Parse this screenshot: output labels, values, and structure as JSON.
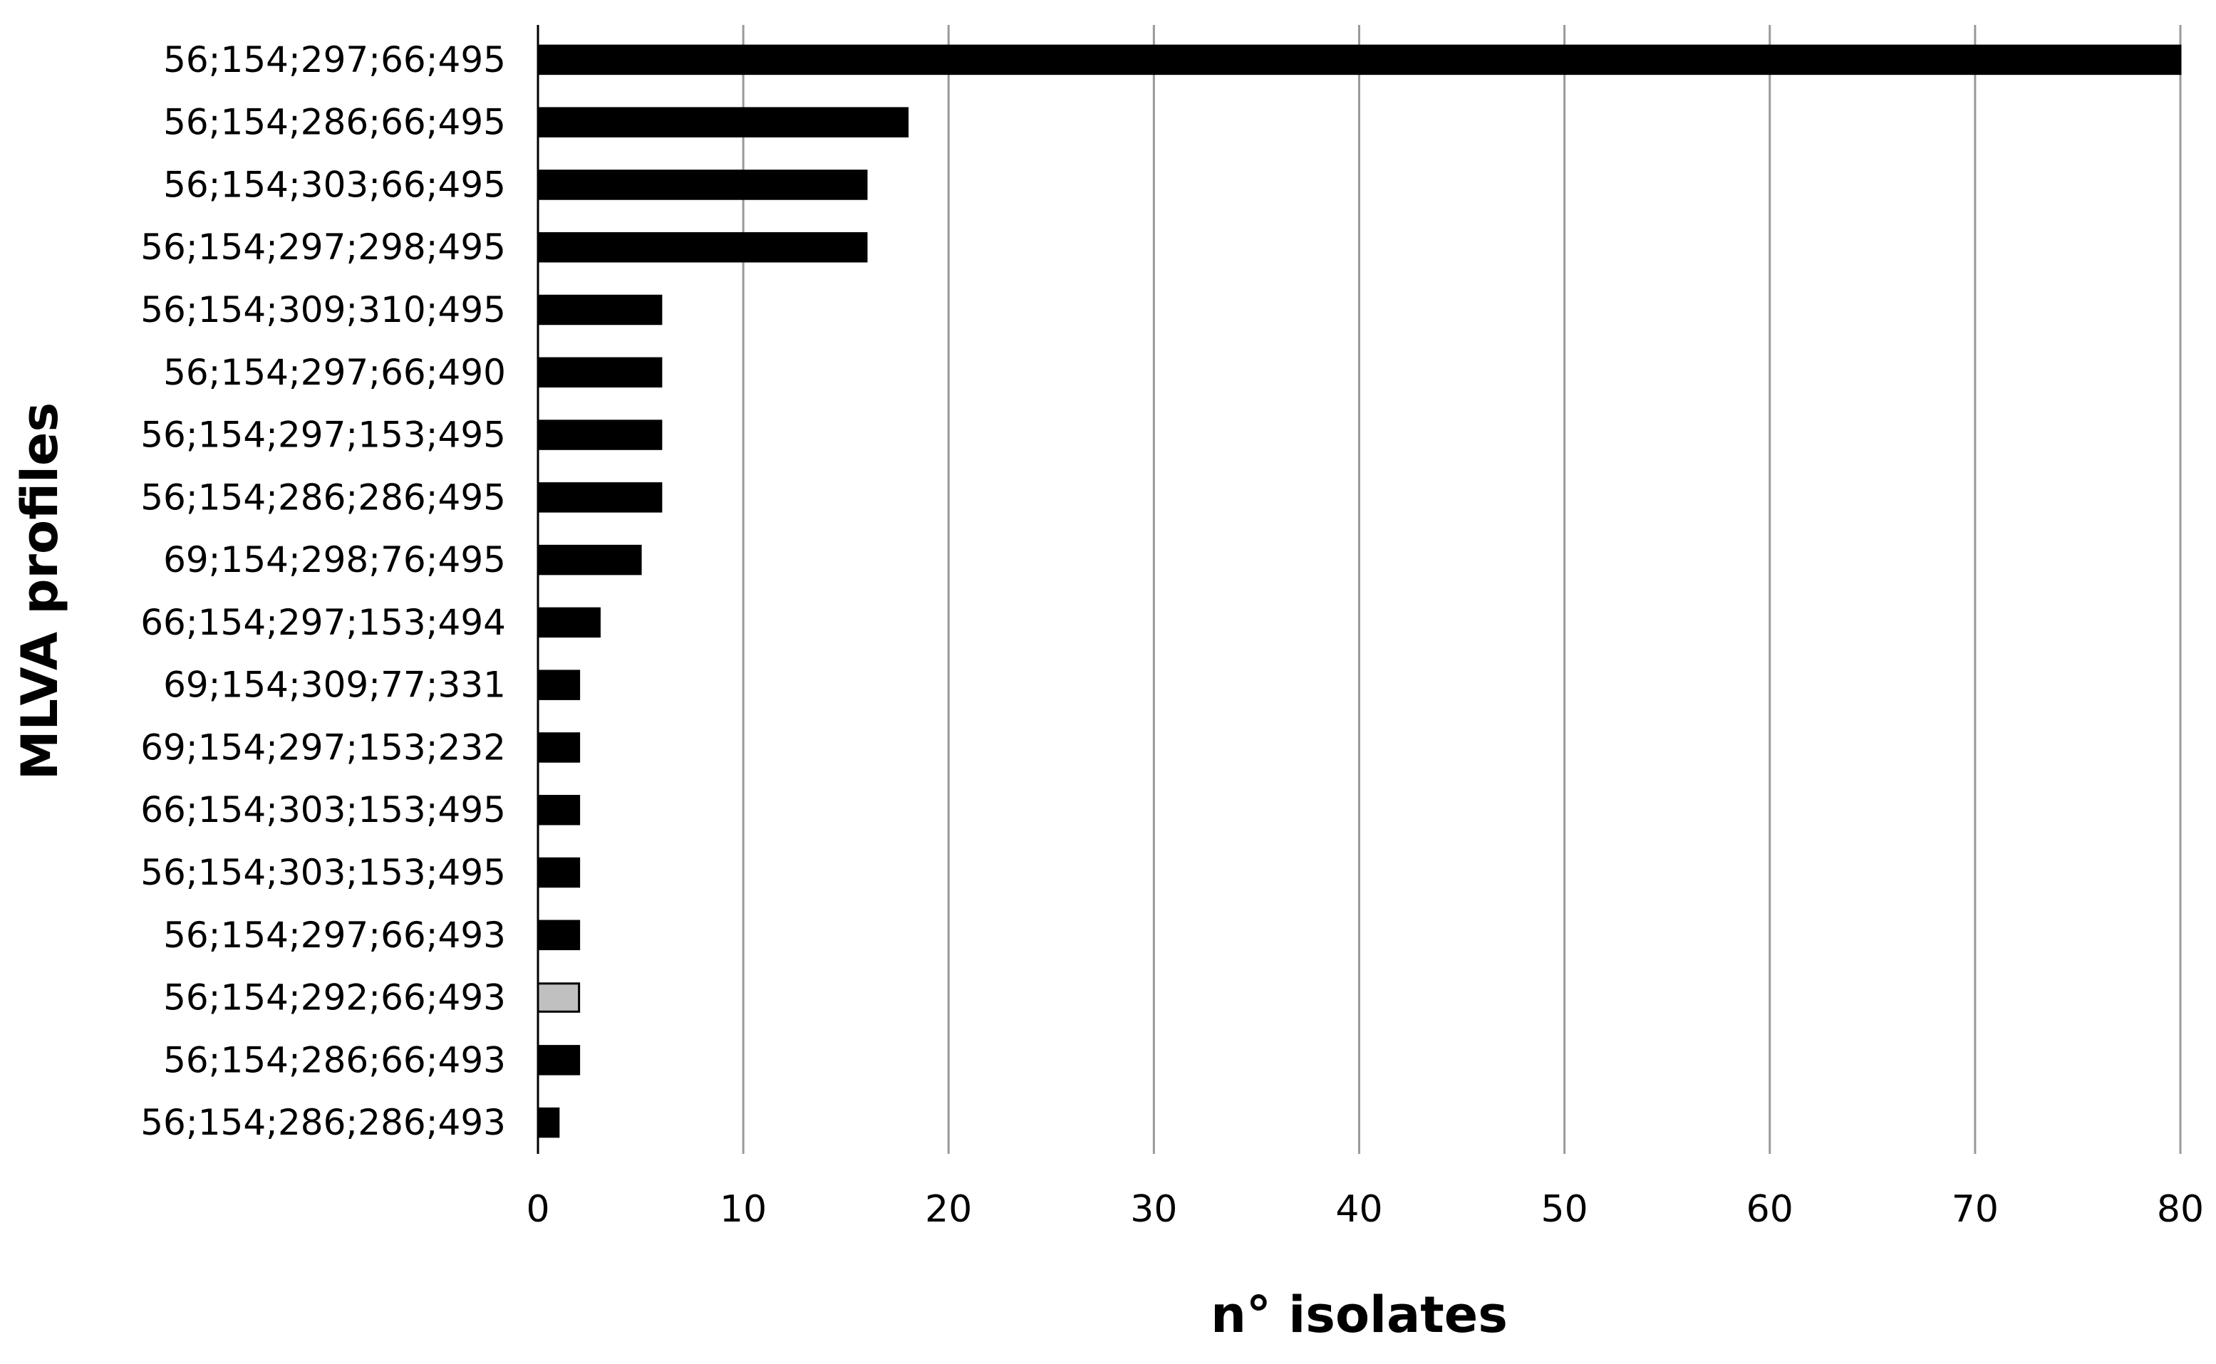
{
  "chart_data": {
    "type": "bar",
    "orientation": "horizontal",
    "categories": [
      "56;154;297;66;495",
      "56;154;286;66;495",
      "56;154;303;66;495",
      "56;154;297;298;495",
      "56;154;309;310;495",
      "56;154;297;66;490",
      "56;154;297;153;495",
      "56;154;286;286;495",
      "69;154;298;76;495",
      "66;154;297;153;494",
      "69;154;309;77;331",
      "69;154;297;153;232",
      "66;154;303;153;495",
      "56;154;303;153;495",
      "56;154;297;66;493",
      "56;154;292;66;493",
      "56;154;286;66;493",
      "56;154;286;286;493"
    ],
    "values": [
      80,
      18,
      16,
      16,
      6,
      6,
      6,
      6,
      5,
      3,
      2,
      2,
      2,
      2,
      2,
      2,
      2,
      1
    ],
    "bar_colors": [
      "#000000",
      "#000000",
      "#000000",
      "#000000",
      "#000000",
      "#000000",
      "#000000",
      "#000000",
      "#000000",
      "#000000",
      "#000000",
      "#000000",
      "#000000",
      "#000000",
      "#000000",
      "#c0c0c0",
      "#000000",
      "#000000"
    ],
    "xlabel": "n° isolates",
    "ylabel": "MLVA profiles",
    "xlim": [
      0,
      80
    ],
    "xticks": [
      0,
      10,
      20,
      30,
      40,
      50,
      60,
      70,
      80
    ],
    "grid": "vertical",
    "legend": "none"
  }
}
